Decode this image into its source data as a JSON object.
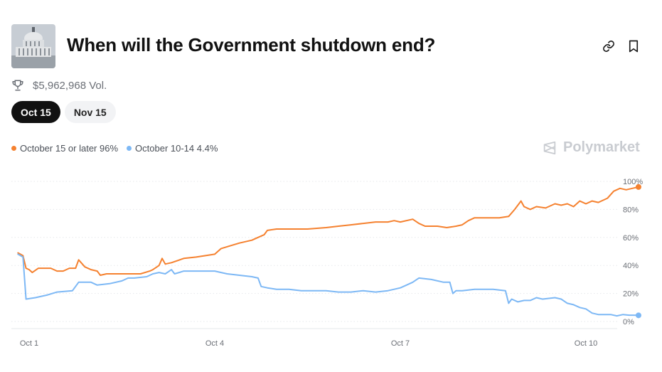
{
  "header": {
    "title": "When will the Government shutdown end?",
    "volume": "$5,962,968 Vol."
  },
  "tabs": [
    {
      "label": "Oct 15",
      "active": true
    },
    {
      "label": "Nov 15",
      "active": false
    }
  ],
  "brand": "Polymarket",
  "icons": {
    "trophy": "trophy-icon",
    "link": "link-icon",
    "bookmark": "bookmark-icon",
    "thumbnail": "capitol-thumbnail"
  },
  "chart_data": {
    "type": "line",
    "xlim": [
      0,
      9.8
    ],
    "ylim": [
      0,
      100
    ],
    "x_ticks": [
      {
        "label": "Oct 1",
        "value": 0
      },
      {
        "label": "Oct 4",
        "value": 3
      },
      {
        "label": "Oct 7",
        "value": 6
      },
      {
        "label": "Oct 10",
        "value": 9
      }
    ],
    "y_ticks": [
      {
        "label": "100%",
        "value": 100
      },
      {
        "label": "80%",
        "value": 80
      },
      {
        "label": "60%",
        "value": 60
      },
      {
        "label": "40%",
        "value": 40
      },
      {
        "label": "20%",
        "value": 20
      },
      {
        "label": "0%",
        "value": 0
      }
    ],
    "grid": true,
    "series": [
      {
        "name": "October 15 or later",
        "label": "October 15 or later 96%",
        "color": "#f5812f",
        "points": [
          [
            -0.18,
            49
          ],
          [
            -0.1,
            47
          ],
          [
            -0.05,
            38
          ],
          [
            0,
            37
          ],
          [
            0.05,
            35
          ],
          [
            0.15,
            38
          ],
          [
            0.35,
            38
          ],
          [
            0.45,
            36
          ],
          [
            0.55,
            36
          ],
          [
            0.65,
            38
          ],
          [
            0.75,
            38
          ],
          [
            0.8,
            44
          ],
          [
            0.9,
            39
          ],
          [
            1.0,
            37
          ],
          [
            1.1,
            36
          ],
          [
            1.15,
            33
          ],
          [
            1.25,
            34
          ],
          [
            1.5,
            34
          ],
          [
            1.8,
            34
          ],
          [
            1.95,
            36
          ],
          [
            2.0,
            37
          ],
          [
            2.1,
            40
          ],
          [
            2.15,
            45
          ],
          [
            2.2,
            41
          ],
          [
            2.3,
            42
          ],
          [
            2.5,
            45
          ],
          [
            2.7,
            46
          ],
          [
            2.85,
            47
          ],
          [
            3.0,
            48
          ],
          [
            3.1,
            52
          ],
          [
            3.25,
            54
          ],
          [
            3.4,
            56
          ],
          [
            3.5,
            57
          ],
          [
            3.6,
            58
          ],
          [
            3.7,
            60
          ],
          [
            3.8,
            62
          ],
          [
            3.85,
            65
          ],
          [
            4.0,
            66
          ],
          [
            4.2,
            66
          ],
          [
            4.5,
            66
          ],
          [
            4.8,
            67
          ],
          [
            5.0,
            68
          ],
          [
            5.2,
            69
          ],
          [
            5.4,
            70
          ],
          [
            5.6,
            71
          ],
          [
            5.8,
            71
          ],
          [
            5.9,
            72
          ],
          [
            6.0,
            71
          ],
          [
            6.2,
            73
          ],
          [
            6.3,
            70
          ],
          [
            6.4,
            68
          ],
          [
            6.6,
            68
          ],
          [
            6.75,
            67
          ],
          [
            6.9,
            68
          ],
          [
            7.0,
            69
          ],
          [
            7.1,
            72
          ],
          [
            7.2,
            74
          ],
          [
            7.4,
            74
          ],
          [
            7.6,
            74
          ],
          [
            7.75,
            75
          ],
          [
            7.85,
            80
          ],
          [
            7.95,
            86
          ],
          [
            8.0,
            82
          ],
          [
            8.1,
            80
          ],
          [
            8.2,
            82
          ],
          [
            8.35,
            81
          ],
          [
            8.5,
            84
          ],
          [
            8.6,
            83
          ],
          [
            8.7,
            84
          ],
          [
            8.8,
            82
          ],
          [
            8.9,
            86
          ],
          [
            9.0,
            84
          ],
          [
            9.1,
            86
          ],
          [
            9.2,
            85
          ],
          [
            9.35,
            88
          ],
          [
            9.45,
            93
          ],
          [
            9.55,
            95
          ],
          [
            9.65,
            94
          ],
          [
            9.75,
            95
          ],
          [
            9.85,
            96
          ]
        ]
      },
      {
        "name": "October 10-14",
        "label": "October 10-14 4.4%",
        "color": "#7db8f5",
        "points": [
          [
            -0.18,
            48
          ],
          [
            -0.1,
            46
          ],
          [
            -0.05,
            16
          ],
          [
            0.1,
            17
          ],
          [
            0.3,
            19
          ],
          [
            0.45,
            21
          ],
          [
            0.7,
            22
          ],
          [
            0.8,
            28
          ],
          [
            1.0,
            28
          ],
          [
            1.1,
            26
          ],
          [
            1.3,
            27
          ],
          [
            1.5,
            29
          ],
          [
            1.6,
            31
          ],
          [
            1.7,
            31
          ],
          [
            1.9,
            32
          ],
          [
            2.0,
            34
          ],
          [
            2.1,
            35
          ],
          [
            2.2,
            34
          ],
          [
            2.3,
            37
          ],
          [
            2.35,
            34
          ],
          [
            2.5,
            36
          ],
          [
            2.8,
            36
          ],
          [
            3.0,
            36
          ],
          [
            3.2,
            34
          ],
          [
            3.4,
            33
          ],
          [
            3.6,
            32
          ],
          [
            3.7,
            31
          ],
          [
            3.75,
            25
          ],
          [
            3.85,
            24
          ],
          [
            4.0,
            23
          ],
          [
            4.2,
            23
          ],
          [
            4.4,
            22
          ],
          [
            4.6,
            22
          ],
          [
            4.8,
            22
          ],
          [
            5.0,
            21
          ],
          [
            5.2,
            21
          ],
          [
            5.4,
            22
          ],
          [
            5.6,
            21
          ],
          [
            5.8,
            22
          ],
          [
            6.0,
            24
          ],
          [
            6.1,
            26
          ],
          [
            6.2,
            28
          ],
          [
            6.3,
            31
          ],
          [
            6.5,
            30
          ],
          [
            6.7,
            28
          ],
          [
            6.8,
            28
          ],
          [
            6.85,
            20
          ],
          [
            6.9,
            22
          ],
          [
            7.0,
            22
          ],
          [
            7.2,
            23
          ],
          [
            7.5,
            23
          ],
          [
            7.7,
            22
          ],
          [
            7.75,
            13
          ],
          [
            7.8,
            16
          ],
          [
            7.9,
            14
          ],
          [
            8.0,
            15
          ],
          [
            8.1,
            15
          ],
          [
            8.2,
            17
          ],
          [
            8.3,
            16
          ],
          [
            8.5,
            17
          ],
          [
            8.6,
            16
          ],
          [
            8.7,
            13
          ],
          [
            8.8,
            12
          ],
          [
            8.9,
            10
          ],
          [
            9.0,
            9
          ],
          [
            9.1,
            6
          ],
          [
            9.2,
            5
          ],
          [
            9.4,
            5
          ],
          [
            9.5,
            4
          ],
          [
            9.6,
            5
          ],
          [
            9.7,
            4.5
          ],
          [
            9.85,
            4.4
          ]
        ]
      }
    ]
  }
}
